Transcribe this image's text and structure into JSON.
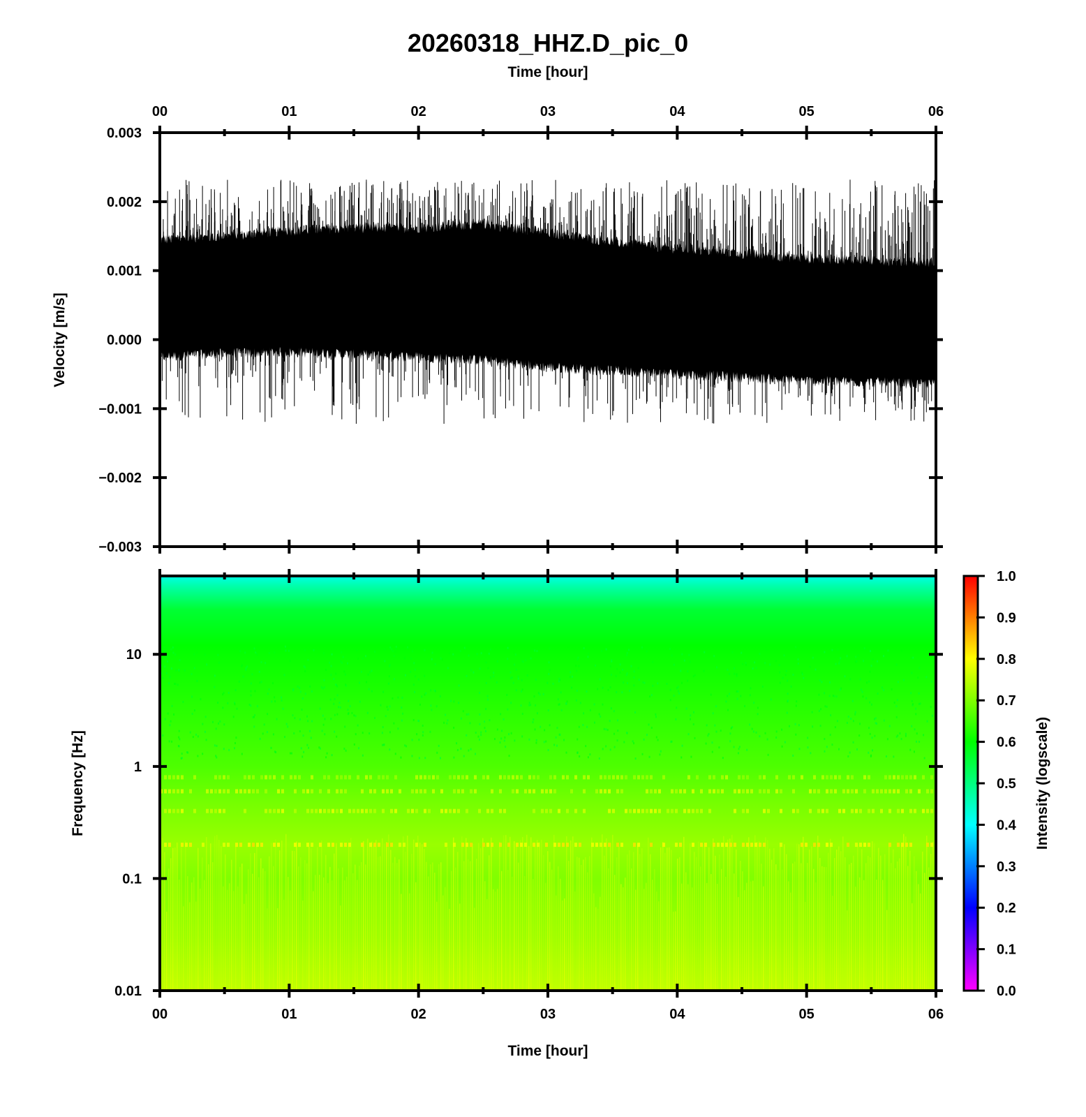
{
  "chart_data": [
    {
      "type": "line",
      "panel": "waveform",
      "title": "20260318_HHZ.D_pic_0",
      "xlabel": "Time [hour]",
      "ylabel": "Velocity [m/s]",
      "x_ticks": [
        "00",
        "01",
        "02",
        "03",
        "04",
        "05",
        "06"
      ],
      "y_ticks": [
        "0.003",
        "0.002",
        "0.001",
        "0.000",
        "−0.001",
        "−0.002",
        "−0.003"
      ],
      "xlim": [
        0,
        6
      ],
      "ylim": [
        -0.003,
        0.003
      ],
      "line_color": "#000000",
      "envelope": {
        "x": [
          0,
          0.5,
          1,
          1.5,
          2,
          2.5,
          3,
          3.5,
          4,
          4.5,
          5,
          5.5,
          6
        ],
        "center": [
          0.00068,
          0.0007,
          0.00075,
          0.00073,
          0.00072,
          0.00068,
          0.0006,
          0.00055,
          0.0005,
          0.00045,
          0.00042,
          0.0004,
          0.00038
        ],
        "upper": [
          0.00145,
          0.0015,
          0.00158,
          0.00162,
          0.00162,
          0.00168,
          0.00155,
          0.00142,
          0.00132,
          0.00125,
          0.00118,
          0.00115,
          0.00112
        ],
        "lower": [
          -0.00025,
          -0.0002,
          -0.00018,
          -0.00022,
          -0.00025,
          -0.0003,
          -0.0004,
          -0.00045,
          -0.0005,
          -0.00055,
          -0.0006,
          -0.00062,
          -0.00065
        ],
        "peaks_max": 0.00232,
        "peaks_min": -0.00122
      }
    },
    {
      "type": "heatmap",
      "panel": "spectrogram",
      "xlabel": "Time [hour]",
      "ylabel": "Frequency [Hz]",
      "x_ticks": [
        "00",
        "01",
        "02",
        "03",
        "04",
        "05",
        "06"
      ],
      "y_ticks": [
        "10",
        "1",
        "0.1",
        "0.01"
      ],
      "xlim": [
        0,
        6
      ],
      "ylim": [
        0.01,
        50
      ],
      "y_scale": "log",
      "colorbar": {
        "label": "Intensity (logscale)",
        "ticks": [
          "1.0",
          "0.9",
          "0.8",
          "0.7",
          "0.6",
          "0.5",
          "0.4",
          "0.3",
          "0.2",
          "0.1",
          "0.0"
        ],
        "range": [
          0,
          1
        ],
        "colors": [
          "#ff00ff",
          "#0000ff",
          "#00ffff",
          "#00ff00",
          "#ffff00",
          "#ff0000"
        ]
      },
      "intensity_profile": {
        "frequency_hz": [
          50,
          40,
          25,
          12,
          5,
          1,
          0.5,
          0.2,
          0.1,
          0.03,
          0.01
        ],
        "intensity": [
          0.42,
          0.47,
          0.56,
          0.6,
          0.62,
          0.66,
          0.69,
          0.72,
          0.7,
          0.72,
          0.75
        ]
      }
    }
  ]
}
